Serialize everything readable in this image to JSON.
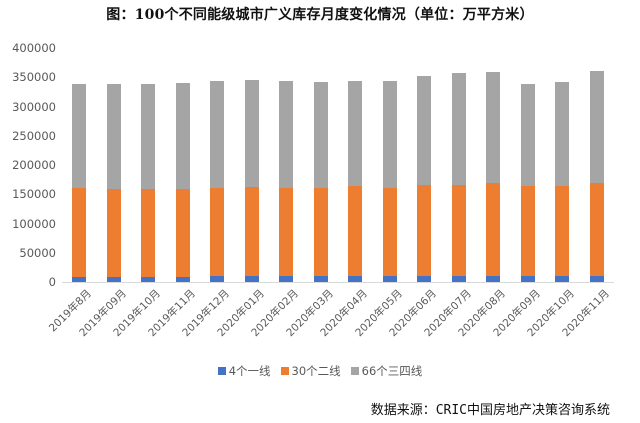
{
  "title": "图：100个不同能级城市广义库存月度变化情况（单位：万平方米）",
  "source": "数据来源：CRIC中国房地产决策咨询系统",
  "colors": {
    "tier1": "#4472C4",
    "tier2": "#ED7D31",
    "tier34": "#A5A5A5",
    "axis_text": "#595959",
    "gridline": "#D9D9D9"
  },
  "legend": [
    {
      "label": "4个一线",
      "color": "#4472C4"
    },
    {
      "label": "30个二线",
      "color": "#ED7D31"
    },
    {
      "label": "66个三四线",
      "color": "#A5A5A5"
    }
  ],
  "chart_data": {
    "type": "bar",
    "stacked": true,
    "title": "图：100个不同能级城市广义库存月度变化情况（单位：万平方米）",
    "xlabel": "",
    "ylabel": "",
    "ylim": [
      0,
      400000
    ],
    "yticks": [
      0,
      50000,
      100000,
      150000,
      200000,
      250000,
      300000,
      350000,
      400000
    ],
    "grid": false,
    "legend_position": "bottom",
    "categories": [
      "2019年8月",
      "2019年09月",
      "2019年10月",
      "2019年11月",
      "2019年12月",
      "2020年01月",
      "2020年02月",
      "2020年03月",
      "2020年04月",
      "2020年05月",
      "2020年06月",
      "2020年07月",
      "2020年08月",
      "2020年09月",
      "2020年10月",
      "2020年11月"
    ],
    "series": [
      {
        "name": "4个一线",
        "color": "#4472C4",
        "values": [
          8000,
          8000,
          8000,
          8000,
          9500,
          9500,
          9500,
          9500,
          9500,
          9500,
          9500,
          9500,
          9500,
          9500,
          9500,
          9500
        ]
      },
      {
        "name": "30个二线",
        "color": "#ED7D31",
        "values": [
          152000,
          151000,
          151000,
          151000,
          152000,
          153000,
          152000,
          152000,
          154000,
          152000,
          156000,
          157000,
          159000,
          154000,
          154000,
          159000
        ]
      },
      {
        "name": "66个三四线",
        "color": "#A5A5A5",
        "values": [
          178000,
          180000,
          180000,
          182000,
          182000,
          183000,
          182000,
          181000,
          181000,
          183000,
          186000,
          190000,
          190000,
          175000,
          178000,
          193000
        ]
      }
    ]
  }
}
